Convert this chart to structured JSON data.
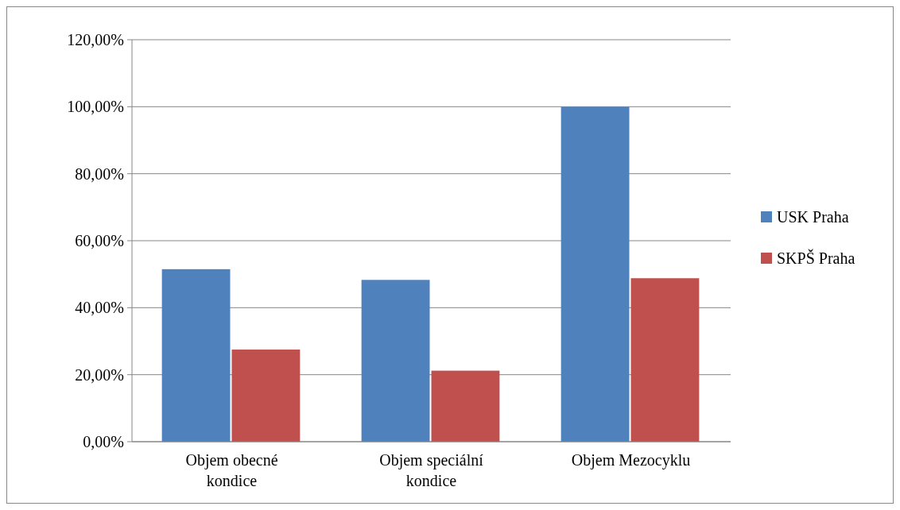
{
  "chart_data": {
    "type": "bar",
    "categories": [
      "Objem obecné kondice",
      "Objem speciální kondice",
      "Objem Mezocyklu"
    ],
    "series": [
      {
        "name": "USK Praha",
        "color": "#4f81bd",
        "values": [
          51.5,
          48.3,
          100
        ]
      },
      {
        "name": "SKPŠ Praha",
        "color": "#c0504d",
        "values": [
          27.5,
          21.2,
          48.8
        ]
      }
    ],
    "ylim": [
      0,
      120
    ],
    "yticks": [
      {
        "value": 0,
        "label": "0,00%"
      },
      {
        "value": 20,
        "label": "20,00%"
      },
      {
        "value": 40,
        "label": "40,00%"
      },
      {
        "value": 60,
        "label": "60,00%"
      },
      {
        "value": 80,
        "label": "80,00%"
      },
      {
        "value": 100,
        "label": "100,00%"
      },
      {
        "value": 120,
        "label": "120,00%"
      }
    ],
    "grid": "y",
    "legend": "right"
  }
}
